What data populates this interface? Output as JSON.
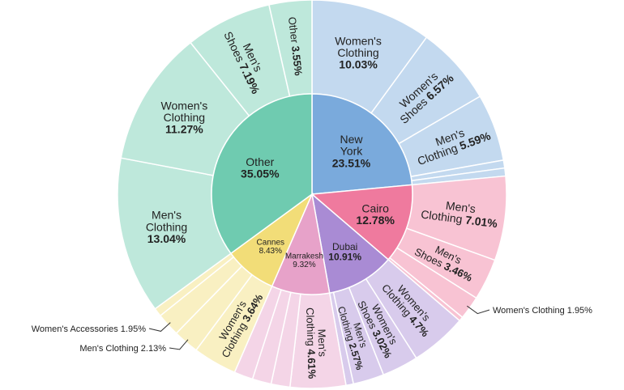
{
  "chart_data": {
    "type": "sunburst",
    "title": "",
    "center": [
      385,
      240
    ],
    "total": 100,
    "inner": [
      {
        "name": "New York",
        "value": 23.51,
        "color": "#7aaadc",
        "children": [
          {
            "name": "Women's Clothing",
            "value": 10.03
          },
          {
            "name": "Women's Shoes",
            "value": 6.57
          },
          {
            "name": "Men's Clothing",
            "value": 5.59
          },
          {
            "name": "",
            "value": 0.66
          },
          {
            "name": "",
            "value": 0.66
          }
        ]
      },
      {
        "name": "Cairo",
        "value": 12.78,
        "color": "#ef7a9e",
        "children": [
          {
            "name": "Men's Clothing",
            "value": 7.01
          },
          {
            "name": "Men's Shoes",
            "value": 3.46
          },
          {
            "name": "Women's Clothing",
            "value": 1.95
          },
          {
            "name": "",
            "value": 0.36
          }
        ]
      },
      {
        "name": "Dubai",
        "value": 10.91,
        "color": "#a98bd4",
        "children": [
          {
            "name": "Women's Clothing",
            "value": 4.7
          },
          {
            "name": "Women's Shoes",
            "value": 3.02
          },
          {
            "name": "Men's Clothing",
            "value": 2.57
          },
          {
            "name": "",
            "value": 0.62
          }
        ]
      },
      {
        "name": "Marrakesh",
        "value": 9.32,
        "color": "#e7a2c9",
        "children": [
          {
            "name": "Men's Clothing",
            "value": 4.61
          },
          {
            "name": "",
            "value": 1.57
          },
          {
            "name": "",
            "value": 1.57
          },
          {
            "name": "",
            "value": 1.57
          }
        ]
      },
      {
        "name": "Cannes",
        "value": 8.43,
        "color": "#f2dd78",
        "children": [
          {
            "name": "Women's Clothing",
            "value": 3.64
          },
          {
            "name": "Men's Clothing",
            "value": 2.13
          },
          {
            "name": "Women's Accessories",
            "value": 1.95
          },
          {
            "name": "",
            "value": 0.71
          }
        ]
      },
      {
        "name": "Other",
        "value": 35.05,
        "color": "#6fcbb0",
        "children": [
          {
            "name": "Men's Clothing",
            "value": 13.04
          },
          {
            "name": "Women's Clothing",
            "value": 11.27
          },
          {
            "name": "Men's Shoes",
            "value": 7.19
          },
          {
            "name": "Other",
            "value": 3.55
          }
        ]
      }
    ]
  }
}
